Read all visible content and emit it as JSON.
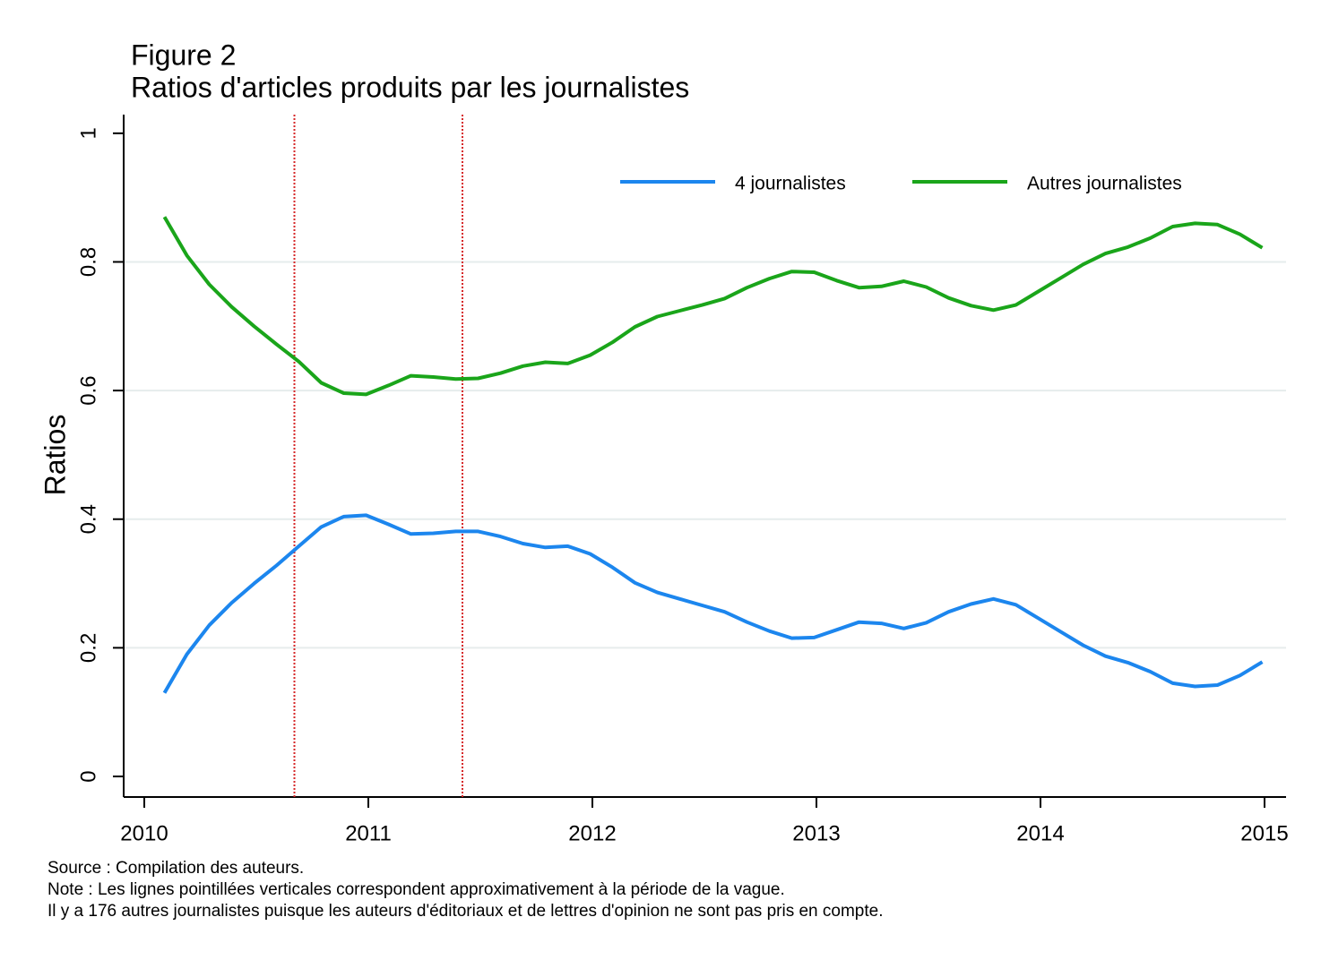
{
  "chart_data": {
    "type": "line",
    "title": "Figure 2",
    "subtitle": "Ratios d'articles produits par les journalistes",
    "y_label": "Ratios",
    "notes": [
      "Source : Compilation des auteurs.",
      "Note : Les lignes pointillées verticales correspondent approximativement à la période de la vague.",
      "Il y a 176 autres journalistes puisque les auteurs d'éditoriaux et de lettres d'opinion ne sont pas pris en compte."
    ],
    "x": [
      2010.09,
      2010.19,
      2010.29,
      2010.39,
      2010.49,
      2010.59,
      2010.69,
      2010.79,
      2010.89,
      2010.99,
      2011.09,
      2011.19,
      2011.29,
      2011.39,
      2011.49,
      2011.59,
      2011.69,
      2011.79,
      2011.89,
      2011.99,
      2012.09,
      2012.19,
      2012.29,
      2012.39,
      2012.49,
      2012.59,
      2012.69,
      2012.79,
      2012.89,
      2012.99,
      2013.09,
      2013.19,
      2013.29,
      2013.39,
      2013.49,
      2013.59,
      2013.69,
      2013.79,
      2013.89,
      2013.99,
      2014.09,
      2014.19,
      2014.29,
      2014.39,
      2014.49,
      2014.59,
      2014.69,
      2014.79,
      2014.89,
      2014.99
    ],
    "series": [
      {
        "name": "4 journalistes",
        "color": "#1c86ee",
        "values": [
          0.13,
          0.19,
          0.235,
          0.27,
          0.3,
          0.328,
          0.358,
          0.388,
          0.404,
          0.406,
          0.392,
          0.377,
          0.378,
          0.381,
          0.381,
          0.373,
          0.362,
          0.356,
          0.358,
          0.346,
          0.325,
          0.301,
          0.286,
          0.276,
          0.266,
          0.256,
          0.24,
          0.226,
          0.215,
          0.216,
          0.228,
          0.24,
          0.238,
          0.23,
          0.239,
          0.256,
          0.268,
          0.276,
          0.267,
          0.246,
          0.225,
          0.204,
          0.187,
          0.177,
          0.163,
          0.145,
          0.14,
          0.142,
          0.157,
          0.178
        ]
      },
      {
        "name": "Autres journalistes",
        "color": "#1aa51a",
        "values": [
          0.87,
          0.81,
          0.765,
          0.73,
          0.7,
          0.672,
          0.645,
          0.612,
          0.596,
          0.594,
          0.608,
          0.623,
          0.621,
          0.618,
          0.619,
          0.627,
          0.638,
          0.644,
          0.642,
          0.655,
          0.675,
          0.699,
          0.715,
          0.724,
          0.733,
          0.743,
          0.76,
          0.774,
          0.785,
          0.784,
          0.771,
          0.76,
          0.762,
          0.77,
          0.761,
          0.744,
          0.732,
          0.725,
          0.733,
          0.754,
          0.775,
          0.796,
          0.813,
          0.823,
          0.837,
          0.855,
          0.86,
          0.858,
          0.843,
          0.822
        ]
      }
    ],
    "vlines": [
      2010.67,
      2011.42
    ],
    "vline_color": "#d62728",
    "xlim": [
      2009.908,
      2015.096
    ],
    "xticks": [
      2010,
      2011,
      2012,
      2013,
      2014,
      2015
    ],
    "ylim": [
      -0.032,
      1.029
    ],
    "yticks": [
      0,
      0.2,
      0.4,
      0.6,
      0.8,
      1
    ],
    "grid": true,
    "legend": "top"
  }
}
